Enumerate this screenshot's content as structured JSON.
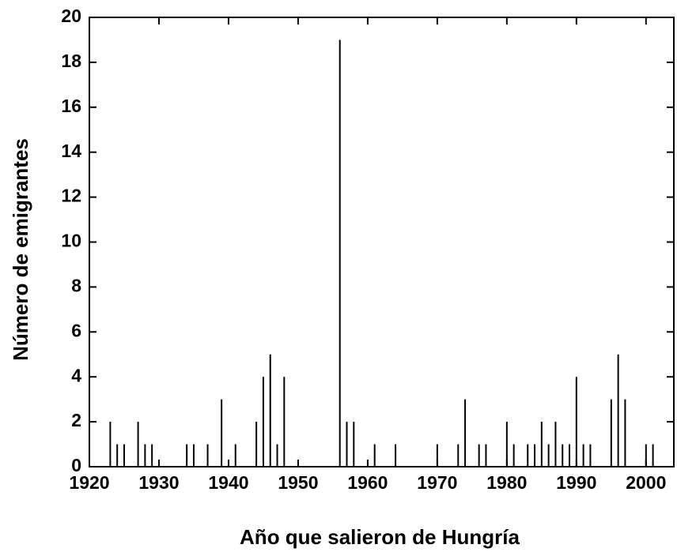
{
  "chart_data": {
    "type": "bar",
    "xlabel": "Año que salieron de Hungría",
    "ylabel": "Número de emigrantes",
    "x": [
      1923,
      1924,
      1925,
      1927,
      1928,
      1929,
      1934,
      1935,
      1937,
      1939,
      1941,
      1944,
      1945,
      1946,
      1947,
      1948,
      1956,
      1957,
      1958,
      1961,
      1964,
      1970,
      1973,
      1974,
      1976,
      1977,
      1980,
      1981,
      1983,
      1984,
      1985,
      1986,
      1987,
      1988,
      1989,
      1990,
      1991,
      1992,
      1995,
      1996,
      1997,
      2000,
      2001
    ],
    "values": [
      2,
      1,
      1,
      2,
      1,
      1,
      1,
      1,
      1,
      3,
      1,
      2,
      4,
      5,
      1,
      4,
      19,
      2,
      2,
      1,
      1,
      1,
      1,
      3,
      1,
      1,
      2,
      1,
      1,
      1,
      2,
      1,
      2,
      1,
      1,
      4,
      1,
      1,
      3,
      5,
      3,
      1,
      1
    ],
    "color": "#000000",
    "xlim": [
      1920,
      2004
    ],
    "xticks": [
      1920,
      1930,
      1940,
      1950,
      1960,
      1970,
      1980,
      1990,
      2000
    ],
    "ylim": [
      0,
      20
    ],
    "yticks": [
      0,
      2,
      4,
      6,
      8,
      10,
      12,
      14,
      16,
      18,
      20
    ]
  }
}
